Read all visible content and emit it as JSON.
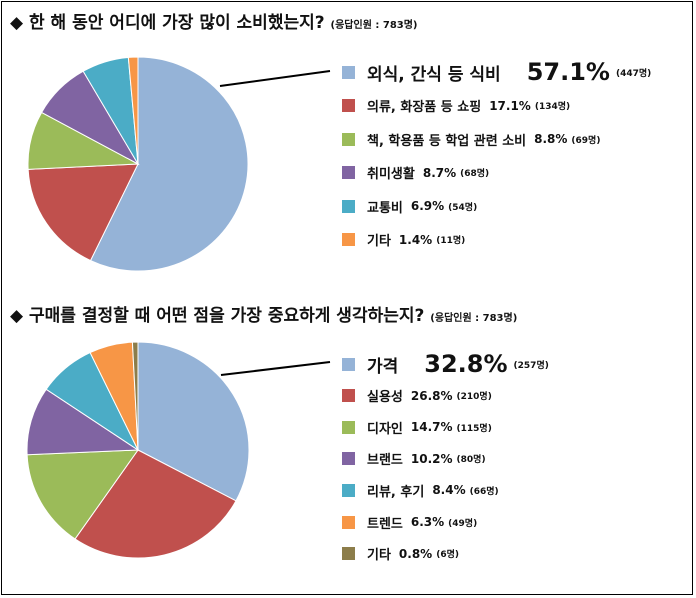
{
  "chart_data": [
    {
      "type": "pie",
      "title": "◆ 한 해 동안 어디에 가장 많이 소비했는지?",
      "respondents": "(응답인원 : 783명)",
      "slices": [
        {
          "label": "외식, 간식 등 식비",
          "percent": 57.1,
          "percent_text": "57.1%",
          "count_text": "(447명)",
          "color": "#95b3d7"
        },
        {
          "label": "의류, 화장품 등 쇼핑",
          "percent": 17.1,
          "percent_text": "17.1%",
          "count_text": "(134명)",
          "color": "#c0504d"
        },
        {
          "label": "책, 학용품 등 학업 관련 소비",
          "percent": 8.8,
          "percent_text": "8.8%",
          "count_text": "(69명)",
          "color": "#9bbb59"
        },
        {
          "label": "취미생활",
          "percent": 8.7,
          "percent_text": "8.7%",
          "count_text": "(68명)",
          "color": "#8064a2"
        },
        {
          "label": "교통비",
          "percent": 6.9,
          "percent_text": "6.9%",
          "count_text": "(54명)",
          "color": "#4bacc6"
        },
        {
          "label": "기타",
          "percent": 1.4,
          "percent_text": "1.4%",
          "count_text": "(11명)",
          "color": "#f79646"
        }
      ]
    },
    {
      "type": "pie",
      "title": "◆ 구매를 결정할 때 어떤 점을 가장 중요하게 생각하는지?",
      "respondents": "(응답인원 : 783명)",
      "slices": [
        {
          "label": "가격",
          "percent": 32.8,
          "percent_text": "32.8%",
          "count_text": "(257명)",
          "color": "#95b3d7"
        },
        {
          "label": "실용성",
          "percent": 26.8,
          "percent_text": "26.8%",
          "count_text": "(210명)",
          "color": "#c0504d"
        },
        {
          "label": "디자인",
          "percent": 14.7,
          "percent_text": "14.7%",
          "count_text": "(115명)",
          "color": "#9bbb59"
        },
        {
          "label": "브랜드",
          "percent": 10.2,
          "percent_text": "10.2%",
          "count_text": "(80명)",
          "color": "#8064a2"
        },
        {
          "label": "리뷰, 후기",
          "percent": 8.4,
          "percent_text": "8.4%",
          "count_text": "(66명)",
          "color": "#4bacc6"
        },
        {
          "label": "트렌드",
          "percent": 6.3,
          "percent_text": "6.3%",
          "count_text": "(49명)",
          "color": "#f79646"
        },
        {
          "label": "기타",
          "percent": 0.8,
          "percent_text": "0.8%",
          "count_text": "(6명)",
          "color": "#8c7d4a"
        }
      ]
    }
  ]
}
